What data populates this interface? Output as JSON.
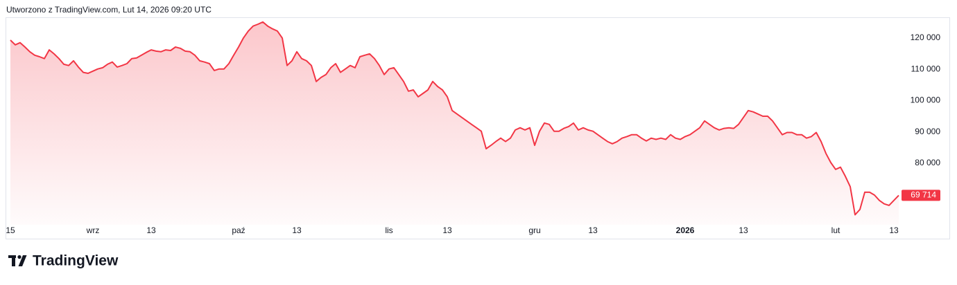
{
  "header": "Utworzono z TradingView.com, Lut 14, 2026 09:20 UTC",
  "footer": "TradingView",
  "chart_data": {
    "type": "area",
    "color": "#f23645",
    "categories": [
      "15",
      null,
      null,
      null,
      null,
      null,
      null,
      null,
      null,
      null,
      null,
      null,
      null,
      null,
      null,
      null,
      null,
      "wrz",
      null,
      null,
      null,
      null,
      null,
      null,
      null,
      null,
      null,
      null,
      null,
      "13",
      null,
      null,
      null,
      null,
      null,
      null,
      null,
      null,
      null,
      null,
      null,
      null,
      null,
      null,
      null,
      null,
      null,
      "paź",
      null,
      null,
      null,
      null,
      null,
      null,
      null,
      null,
      null,
      null,
      null,
      "13",
      null,
      null,
      null,
      null,
      null,
      null,
      null,
      null,
      null,
      null,
      null,
      null,
      null,
      null,
      null,
      null,
      null,
      null,
      "lis",
      null,
      null,
      null,
      null,
      null,
      null,
      null,
      null,
      null,
      null,
      null,
      "13",
      null,
      null,
      null,
      null,
      null,
      null,
      null,
      null,
      null,
      null,
      null,
      null,
      null,
      null,
      null,
      null,
      null,
      "gru",
      null,
      null,
      null,
      null,
      null,
      null,
      null,
      null,
      null,
      null,
      null,
      "13",
      null,
      null,
      null,
      null,
      null,
      null,
      null,
      null,
      null,
      null,
      null,
      null,
      null,
      null,
      null,
      null,
      null,
      null,
      "2026",
      null,
      null,
      null,
      null,
      null,
      null,
      null,
      null,
      null,
      null,
      null,
      "13",
      null,
      null,
      null,
      null,
      null,
      null,
      null,
      null,
      null,
      null,
      null,
      null,
      null,
      null,
      null,
      null,
      null,
      null,
      "lut",
      null,
      null,
      null,
      null,
      null,
      null,
      null,
      null,
      null,
      null,
      null,
      "13",
      null
    ],
    "values": [
      119300,
      117800,
      118500,
      117100,
      115600,
      114500,
      114000,
      113400,
      116200,
      114900,
      113400,
      111600,
      111200,
      112700,
      110700,
      109000,
      108700,
      109400,
      110100,
      110500,
      111600,
      112300,
      110700,
      111200,
      111800,
      113400,
      113600,
      114500,
      115400,
      116200,
      115800,
      115600,
      116200,
      116000,
      117100,
      116700,
      115800,
      115600,
      114500,
      112700,
      112300,
      111800,
      109600,
      110100,
      110100,
      111800,
      114500,
      117100,
      120000,
      122200,
      123800,
      124400,
      125100,
      123800,
      122900,
      122200,
      120000,
      111200,
      112700,
      115600,
      113400,
      112700,
      111200,
      106100,
      107400,
      108300,
      110500,
      111800,
      109000,
      110100,
      111200,
      110500,
      114000,
      114500,
      114900,
      113400,
      111200,
      108300,
      110100,
      110500,
      108300,
      106100,
      103000,
      103400,
      101200,
      102300,
      103400,
      106100,
      104500,
      103400,
      101200,
      96800,
      95700,
      94600,
      93500,
      92400,
      91300,
      90200,
      84600,
      85700,
      86900,
      88000,
      86900,
      88000,
      90600,
      91300,
      90600,
      91300,
      85700,
      90200,
      92800,
      92400,
      90200,
      90200,
      91100,
      91700,
      92800,
      90600,
      91300,
      90600,
      90200,
      89100,
      88000,
      86900,
      86200,
      86900,
      88000,
      88500,
      89100,
      89100,
      88000,
      87100,
      88000,
      87600,
      88000,
      87600,
      89100,
      88000,
      87600,
      88500,
      89100,
      90200,
      91300,
      93500,
      92400,
      91300,
      90600,
      91100,
      91300,
      91100,
      92400,
      94600,
      96800,
      96400,
      95700,
      95000,
      95000,
      93500,
      91300,
      89100,
      89800,
      89800,
      89100,
      89100,
      88000,
      88500,
      89800,
      86900,
      83100,
      80200,
      78000,
      78700,
      75800,
      72500,
      63500,
      65200,
      70700,
      70700,
      69800,
      68100,
      67000,
      66500,
      68100,
      69714
    ],
    "last_price_label": "69 714",
    "ylim": [
      60300,
      126600
    ],
    "yticks": [
      {
        "value": 80000,
        "label": "80 000"
      },
      {
        "value": 90000,
        "label": "90 000"
      },
      {
        "value": 100000,
        "label": "100 000"
      },
      {
        "value": 110000,
        "label": "110 000"
      },
      {
        "value": 120000,
        "label": "120 000"
      }
    ]
  }
}
